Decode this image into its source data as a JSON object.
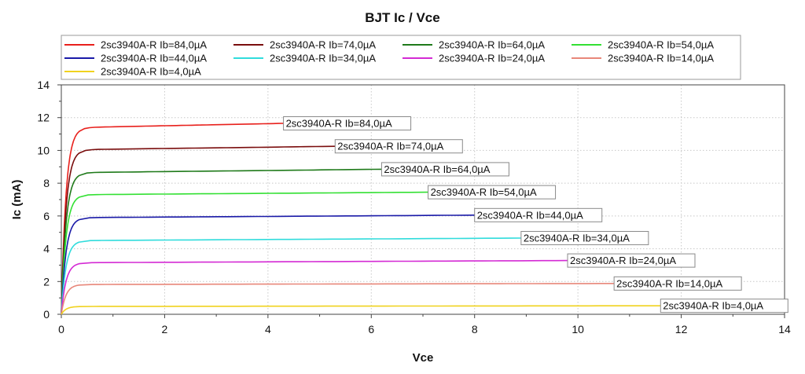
{
  "chart_data": {
    "type": "line",
    "title": "BJT Ic / Vce",
    "xlabel": "Vce",
    "ylabel": "Ic (mA)",
    "xlim": [
      0,
      14
    ],
    "ylim": [
      0,
      14
    ],
    "xticks": [
      0,
      2,
      4,
      6,
      8,
      10,
      12,
      14
    ],
    "yticks": [
      0,
      2,
      4,
      6,
      8,
      10,
      12,
      14
    ],
    "grid": true,
    "legend_position": "top",
    "series": [
      {
        "name": "2sc3940A-R Ib=84,0µA",
        "color": "#e8201c",
        "x_end": 4.3,
        "ic_sat": 11.4,
        "ic_end": 11.65
      },
      {
        "name": "2sc3940A-R Ib=74,0µA",
        "color": "#7a0d0d",
        "x_end": 5.3,
        "ic_sat": 10.05,
        "ic_end": 10.25
      },
      {
        "name": "2sc3940A-R Ib=64,0µA",
        "color": "#1f7a1a",
        "x_end": 6.2,
        "ic_sat": 8.65,
        "ic_end": 8.85
      },
      {
        "name": "2sc3940A-R Ib=54,0µA",
        "color": "#33e033",
        "x_end": 7.1,
        "ic_sat": 7.3,
        "ic_end": 7.45
      },
      {
        "name": "2sc3940A-R Ib=44,0µA",
        "color": "#1a1aa8",
        "x_end": 8.0,
        "ic_sat": 5.9,
        "ic_end": 6.05
      },
      {
        "name": "2sc3940A-R Ib=34,0µA",
        "color": "#30dcdc",
        "x_end": 8.9,
        "ic_sat": 4.5,
        "ic_end": 4.65
      },
      {
        "name": "2sc3940A-R Ib=24,0µA",
        "color": "#d42ad4",
        "x_end": 9.8,
        "ic_sat": 3.15,
        "ic_end": 3.28
      },
      {
        "name": "2sc3940A-R Ib=14,0µA",
        "color": "#e8877a",
        "x_end": 10.7,
        "ic_sat": 1.82,
        "ic_end": 1.88
      },
      {
        "name": "2sc3940A-R Ib=4,0µA",
        "color": "#f0d21e",
        "x_end": 11.6,
        "ic_sat": 0.48,
        "ic_end": 0.52
      }
    ]
  }
}
